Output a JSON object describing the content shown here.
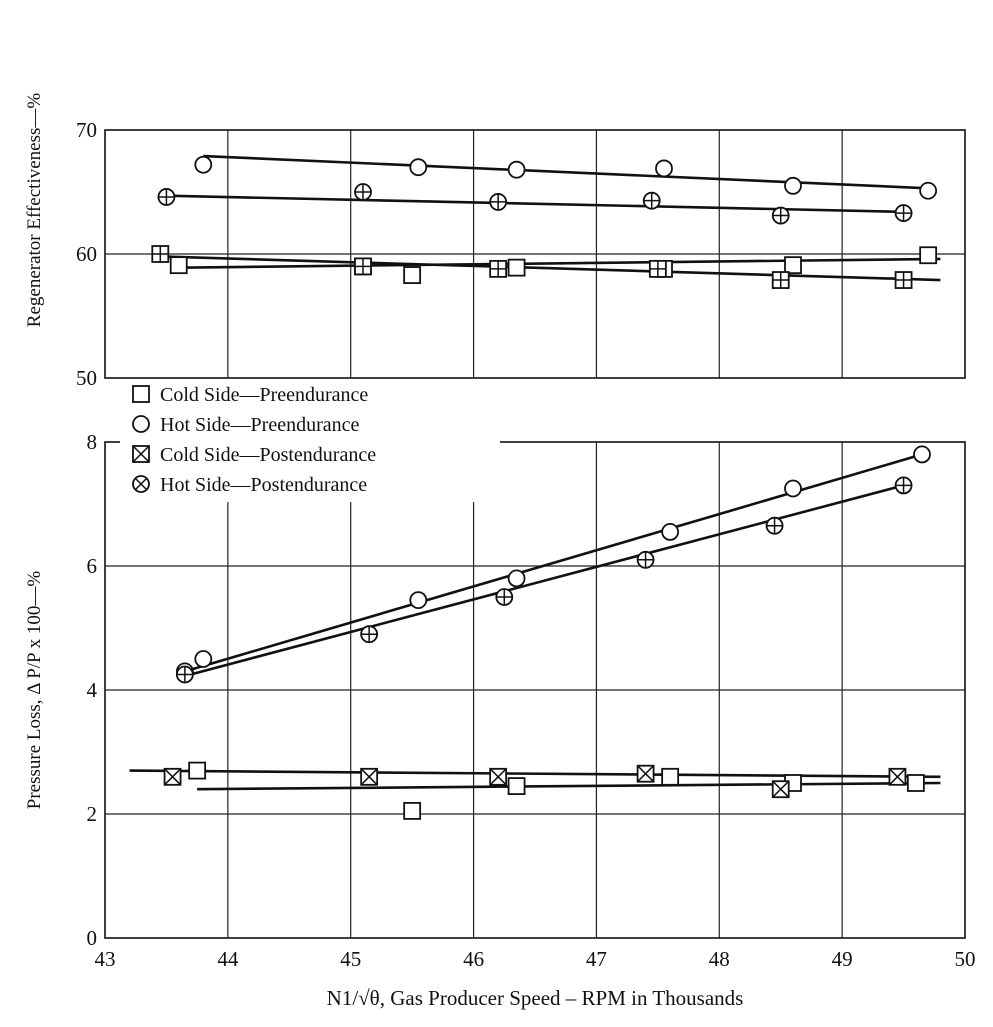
{
  "chart_data": [
    {
      "type": "scatter",
      "ylabel": "Regenerator Effectiveness—%",
      "xlim": [
        43,
        50
      ],
      "ylim": [
        50,
        70
      ],
      "grid": true,
      "y_ticks": [
        "50",
        "60",
        "70"
      ],
      "series": [
        {
          "name": "Hot Side—Preendurance",
          "marker": "circle",
          "x": [
            43.8,
            45.55,
            46.35,
            47.55,
            48.6,
            49.7
          ],
          "y": [
            67.2,
            67.0,
            66.8,
            66.9,
            65.5,
            65.1
          ],
          "fit": [
            [
              43.8,
              67.9
            ],
            [
              49.7,
              65.3
            ]
          ]
        },
        {
          "name": "Hot Side—Postendurance",
          "marker": "circle-cross",
          "x": [
            43.5,
            45.1,
            46.2,
            47.45,
            48.5,
            49.5
          ],
          "y": [
            64.6,
            65.0,
            64.2,
            64.3,
            63.1,
            63.3
          ],
          "fit": [
            [
              43.5,
              64.7
            ],
            [
              49.5,
              63.4
            ]
          ]
        },
        {
          "name": "Cold Side—Preendurance",
          "marker": "square",
          "x": [
            43.6,
            45.1,
            45.5,
            46.35,
            47.55,
            48.6,
            49.7
          ],
          "y": [
            59.1,
            59.0,
            58.3,
            58.9,
            58.8,
            59.1,
            59.9
          ],
          "fit": [
            [
              43.6,
              58.9
            ],
            [
              49.8,
              59.6
            ]
          ]
        },
        {
          "name": "Cold Side—Postendurance",
          "marker": "square-plus",
          "x": [
            43.45,
            45.1,
            46.2,
            47.5,
            48.5,
            49.5
          ],
          "y": [
            60.0,
            59.0,
            58.8,
            58.8,
            57.9,
            57.9
          ],
          "fit": [
            [
              43.45,
              59.8
            ],
            [
              49.8,
              57.9
            ]
          ]
        }
      ]
    },
    {
      "type": "scatter",
      "xlabel": "N1/√θ, Gas Producer Speed – RPM in Thousands",
      "ylabel": "Pressure Loss, Δ P/P x 100—%",
      "xlim": [
        43,
        50
      ],
      "ylim": [
        0,
        8
      ],
      "grid": true,
      "x_ticks": [
        "43",
        "44",
        "45",
        "46",
        "47",
        "48",
        "49",
        "50"
      ],
      "y_ticks": [
        "0",
        "2",
        "4",
        "6",
        "8"
      ],
      "series": [
        {
          "name": "Hot Side—Preendurance",
          "marker": "circle",
          "x": [
            43.65,
            43.8,
            45.55,
            46.35,
            47.6,
            48.6,
            49.65
          ],
          "y": [
            4.3,
            4.5,
            5.45,
            5.8,
            6.55,
            7.25,
            7.8
          ],
          "fit": [
            [
              43.65,
              4.3
            ],
            [
              49.65,
              7.8
            ]
          ]
        },
        {
          "name": "Hot Side—Postendurance",
          "marker": "circle-cross",
          "x": [
            43.65,
            45.15,
            46.25,
            47.4,
            48.45,
            49.5
          ],
          "y": [
            4.25,
            4.9,
            5.5,
            6.1,
            6.65,
            7.3
          ],
          "fit": [
            [
              43.6,
              4.2
            ],
            [
              49.5,
              7.3
            ]
          ]
        },
        {
          "name": "Cold Side—Preendurance",
          "marker": "square",
          "x": [
            43.75,
            45.5,
            46.35,
            47.6,
            48.6,
            49.6
          ],
          "y": [
            2.7,
            2.05,
            2.45,
            2.6,
            2.5,
            2.5
          ],
          "fit": [
            [
              43.75,
              2.4
            ],
            [
              49.8,
              2.5
            ]
          ]
        },
        {
          "name": "Cold Side—Postendurance",
          "marker": "square-x",
          "x": [
            43.55,
            45.15,
            46.2,
            47.4,
            48.5,
            49.45
          ],
          "y": [
            2.6,
            2.6,
            2.6,
            2.65,
            2.4,
            2.6
          ],
          "fit": [
            [
              43.2,
              2.7
            ],
            [
              49.8,
              2.6
            ]
          ]
        }
      ]
    }
  ],
  "legend": [
    {
      "marker": "square",
      "label": "Cold Side—Preendurance"
    },
    {
      "marker": "circle",
      "label": "Hot Side—Preendurance"
    },
    {
      "marker": "square-x",
      "label": "Cold Side—Postendurance"
    },
    {
      "marker": "circle-x",
      "label": "Hot Side—Postendurance"
    }
  ],
  "colors": {
    "ink": "#111111",
    "grid": "#222222",
    "background": "#ffffff"
  }
}
